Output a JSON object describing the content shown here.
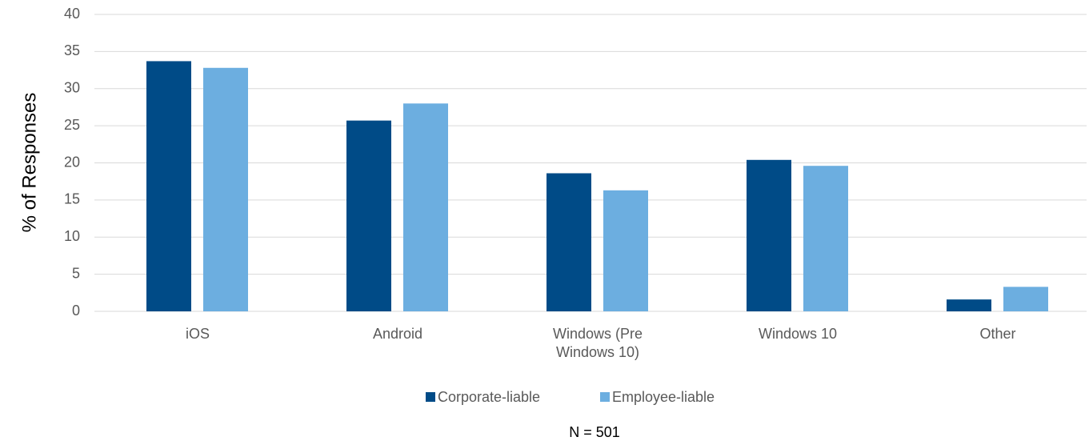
{
  "chart_data": {
    "type": "bar",
    "y_axis_label": "% of Responses",
    "categories": [
      "iOS",
      "Android",
      "Windows (Pre Windows 10)",
      "Windows 10",
      "Other"
    ],
    "series": [
      {
        "name": "Corporate-liable",
        "color": "#004b87",
        "values": [
          33.7,
          25.7,
          18.6,
          20.4,
          1.6
        ]
      },
      {
        "name": "Employee-liable",
        "color": "#6caee0",
        "values": [
          32.8,
          28.0,
          16.3,
          19.6,
          3.3
        ]
      }
    ],
    "ylim": [
      0,
      40
    ],
    "yticks": [
      0,
      5,
      10,
      15,
      20,
      25,
      30,
      35,
      40
    ],
    "grid": true,
    "legend": "bottom",
    "footnote": "N = 501"
  }
}
